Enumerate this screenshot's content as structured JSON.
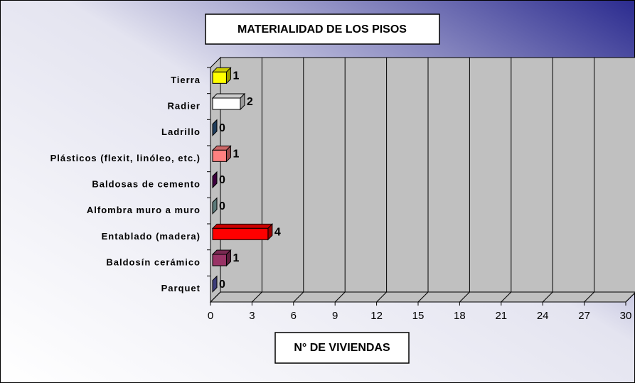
{
  "chart_data": {
    "type": "bar3d_horizontal",
    "title": "MATERIALIDAD DE LOS PISOS",
    "x_label": "N° DE VIVIENDAS",
    "categories": [
      "Tierra",
      "Radier",
      "Ladrillo",
      "Plásticos (flexit, linóleo, etc.)",
      "Baldosas de cemento",
      "Alfombra muro a muro",
      "Entablado (madera)",
      "Baldosín cerámico",
      "Parquet"
    ],
    "values": [
      1,
      2,
      0,
      1,
      0,
      0,
      4,
      1,
      0
    ],
    "colors": [
      "#ffff00",
      "#ffffff",
      "#336699",
      "#ff8080",
      "#660066",
      "#99cccc",
      "#ff0000",
      "#993366",
      "#6666cc"
    ],
    "xlim": [
      0,
      30
    ],
    "xticks": [
      0,
      3,
      6,
      9,
      12,
      15,
      18,
      21,
      24,
      27,
      30
    ],
    "grid": true
  }
}
